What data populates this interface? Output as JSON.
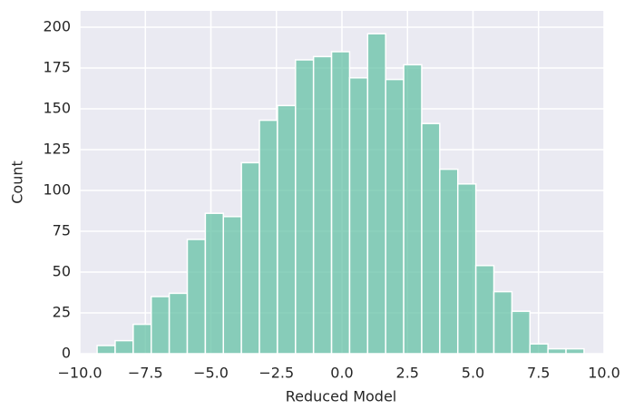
{
  "chart_data": {
    "type": "histogram",
    "xlabel": "Reduced Model",
    "ylabel": "Count",
    "bins": [
      -9.34,
      -8.652,
      -7.964,
      -7.276,
      -6.588,
      -5.9,
      -5.212,
      -4.524,
      -3.836,
      -3.148,
      -2.46,
      -1.772,
      -1.084,
      -0.396,
      0.292,
      0.98,
      1.668,
      2.356,
      3.044,
      3.732,
      4.42,
      5.108,
      5.796,
      6.484,
      7.172,
      7.86,
      8.548,
      9.236
    ],
    "counts": [
      5,
      8,
      18,
      35,
      37,
      70,
      86,
      84,
      117,
      143,
      152,
      180,
      182,
      185,
      169,
      196,
      168,
      177,
      141,
      113,
      104,
      54,
      38,
      26,
      6,
      3,
      3
    ],
    "color": "#66c2a5",
    "xlim": [
      -10,
      10
    ],
    "xticks": [
      {
        "value": -10,
        "label": "−10.0"
      },
      {
        "value": -7.5,
        "label": "−7.5"
      },
      {
        "value": -5,
        "label": "−5.0"
      },
      {
        "value": -2.5,
        "label": "−2.5"
      },
      {
        "value": 0,
        "label": "0.0"
      },
      {
        "value": 2.5,
        "label": "2.5"
      },
      {
        "value": 5,
        "label": "5.0"
      },
      {
        "value": 7.5,
        "label": "7.5"
      },
      {
        "value": 10,
        "label": "10.0"
      }
    ],
    "ylim": [
      0,
      210
    ],
    "yticks": [
      0,
      25,
      50,
      75,
      100,
      125,
      150,
      175,
      200
    ],
    "grid": true
  }
}
